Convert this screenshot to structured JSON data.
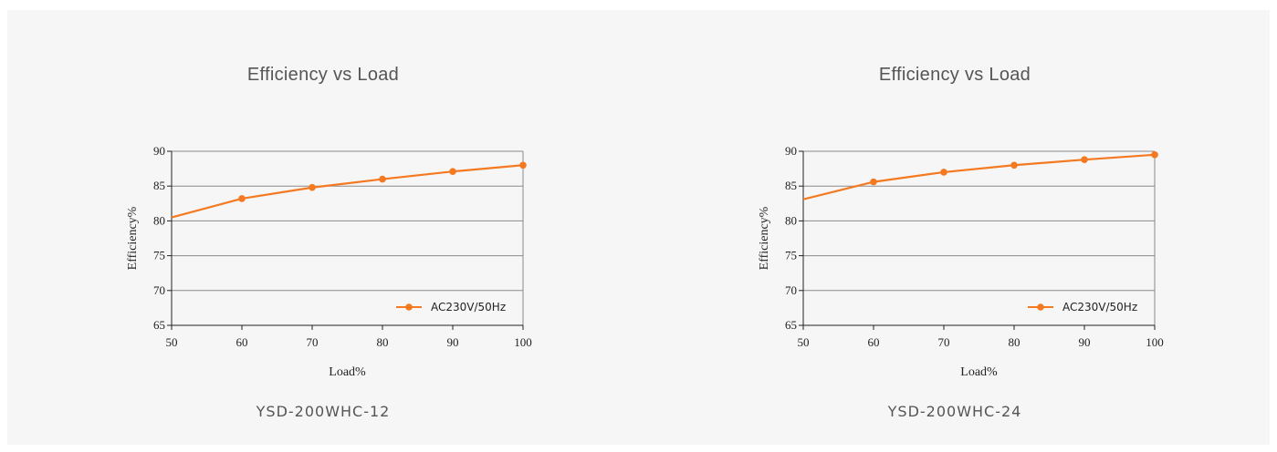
{
  "charts": [
    {
      "title": "Efficiency vs Load",
      "model": "YSD-200WHC-12",
      "chart_data": {
        "type": "line",
        "title": "Efficiency vs Load",
        "xlabel": "Load%",
        "ylabel": "Efficiency%",
        "xlim": [
          50,
          100
        ],
        "ylim": [
          65,
          90
        ],
        "xticks": [
          50,
          60,
          70,
          80,
          90,
          100
        ],
        "yticks": [
          65,
          70,
          75,
          80,
          85,
          90
        ],
        "grid": "horizontal",
        "legend_position": "bottom-right",
        "series": [
          {
            "name": "AC230V/50Hz",
            "color": "#f47920",
            "line_points": [
              [
                50,
                80.5
              ],
              [
                60,
                83.2
              ],
              [
                70,
                84.8
              ],
              [
                80,
                86.0
              ],
              [
                90,
                87.1
              ],
              [
                100,
                88.0
              ]
            ],
            "markers": [
              [
                60,
                83.2
              ],
              [
                70,
                84.8
              ],
              [
                80,
                86.0
              ],
              [
                90,
                87.1
              ],
              [
                100,
                88.0
              ]
            ]
          }
        ]
      }
    },
    {
      "title": "Efficiency vs Load",
      "model": "YSD-200WHC-24",
      "chart_data": {
        "type": "line",
        "title": "Efficiency vs Load",
        "xlabel": "Load%",
        "ylabel": "Efficiency%",
        "xlim": [
          50,
          100
        ],
        "ylim": [
          65,
          90
        ],
        "xticks": [
          50,
          60,
          70,
          80,
          90,
          100
        ],
        "yticks": [
          65,
          70,
          75,
          80,
          85,
          90
        ],
        "grid": "horizontal",
        "legend_position": "bottom-right",
        "series": [
          {
            "name": "AC230V/50Hz",
            "color": "#f47920",
            "line_points": [
              [
                50,
                83.1
              ],
              [
                60,
                85.6
              ],
              [
                70,
                87.0
              ],
              [
                80,
                88.0
              ],
              [
                90,
                88.8
              ],
              [
                100,
                89.5
              ]
            ],
            "markers": [
              [
                60,
                85.6
              ],
              [
                70,
                87.0
              ],
              [
                80,
                88.0
              ],
              [
                90,
                88.8
              ],
              [
                100,
                89.5
              ]
            ]
          }
        ]
      }
    }
  ]
}
